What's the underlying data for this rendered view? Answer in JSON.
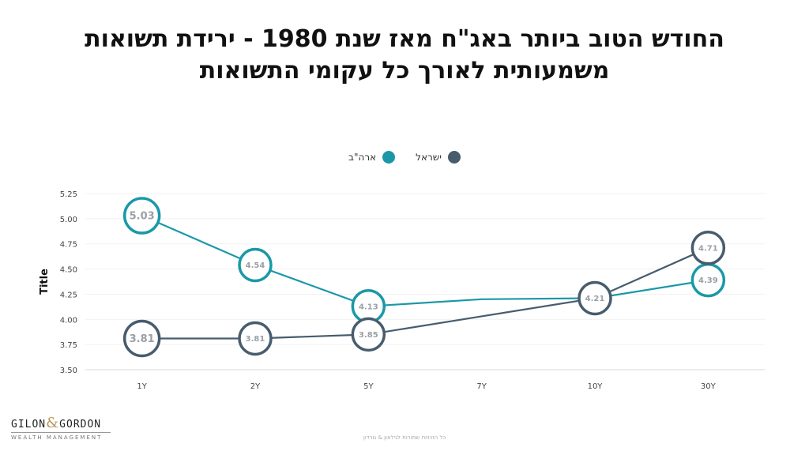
{
  "title_lines": [
    "החודש הטוב ביותר באג\"ח מאז שנת 1980 - ירידת תשואות",
    "משמעותית לאורך כל עקומי התשואות"
  ],
  "brand": {
    "name_left": "GILON",
    "amp": "&",
    "name_right": "GORDON",
    "sub": "WEALTH MANAGEMENT"
  },
  "copyright": "כל הזכויות שמורות לגילאון & גורדון",
  "colors": {
    "usa": "#1a98a8",
    "israel": "#475c6d",
    "label_text": "#9aa0a6"
  },
  "chart_data": {
    "type": "line",
    "categories": [
      "1Y",
      "2Y",
      "5Y",
      "7Y",
      "10Y",
      "30Y"
    ],
    "ylabel": "Title",
    "ylim": [
      3.5,
      5.25
    ],
    "yticks": [
      3.5,
      3.75,
      4.0,
      4.25,
      4.5,
      4.75,
      5.0,
      5.25
    ],
    "ytick_labels": [
      "3.50",
      "3.75",
      "4.00",
      "4.25",
      "4.50",
      "4.75",
      "5.00",
      "5.25"
    ],
    "legend_position": "top-center",
    "series": [
      {
        "name": "ארה\"ב",
        "color": "#1a98a8",
        "values": [
          5.03,
          4.54,
          4.13,
          4.2,
          4.21,
          4.39
        ],
        "labels": [
          "5.03",
          "4.54",
          "4.13",
          null,
          null,
          "4.39"
        ]
      },
      {
        "name": "ישראל",
        "color": "#475c6d",
        "values": [
          3.81,
          3.81,
          3.85,
          4.03,
          4.21,
          4.71
        ],
        "labels": [
          "3.81",
          "3.81",
          "3.85",
          null,
          "4.21",
          "4.71"
        ]
      }
    ]
  }
}
